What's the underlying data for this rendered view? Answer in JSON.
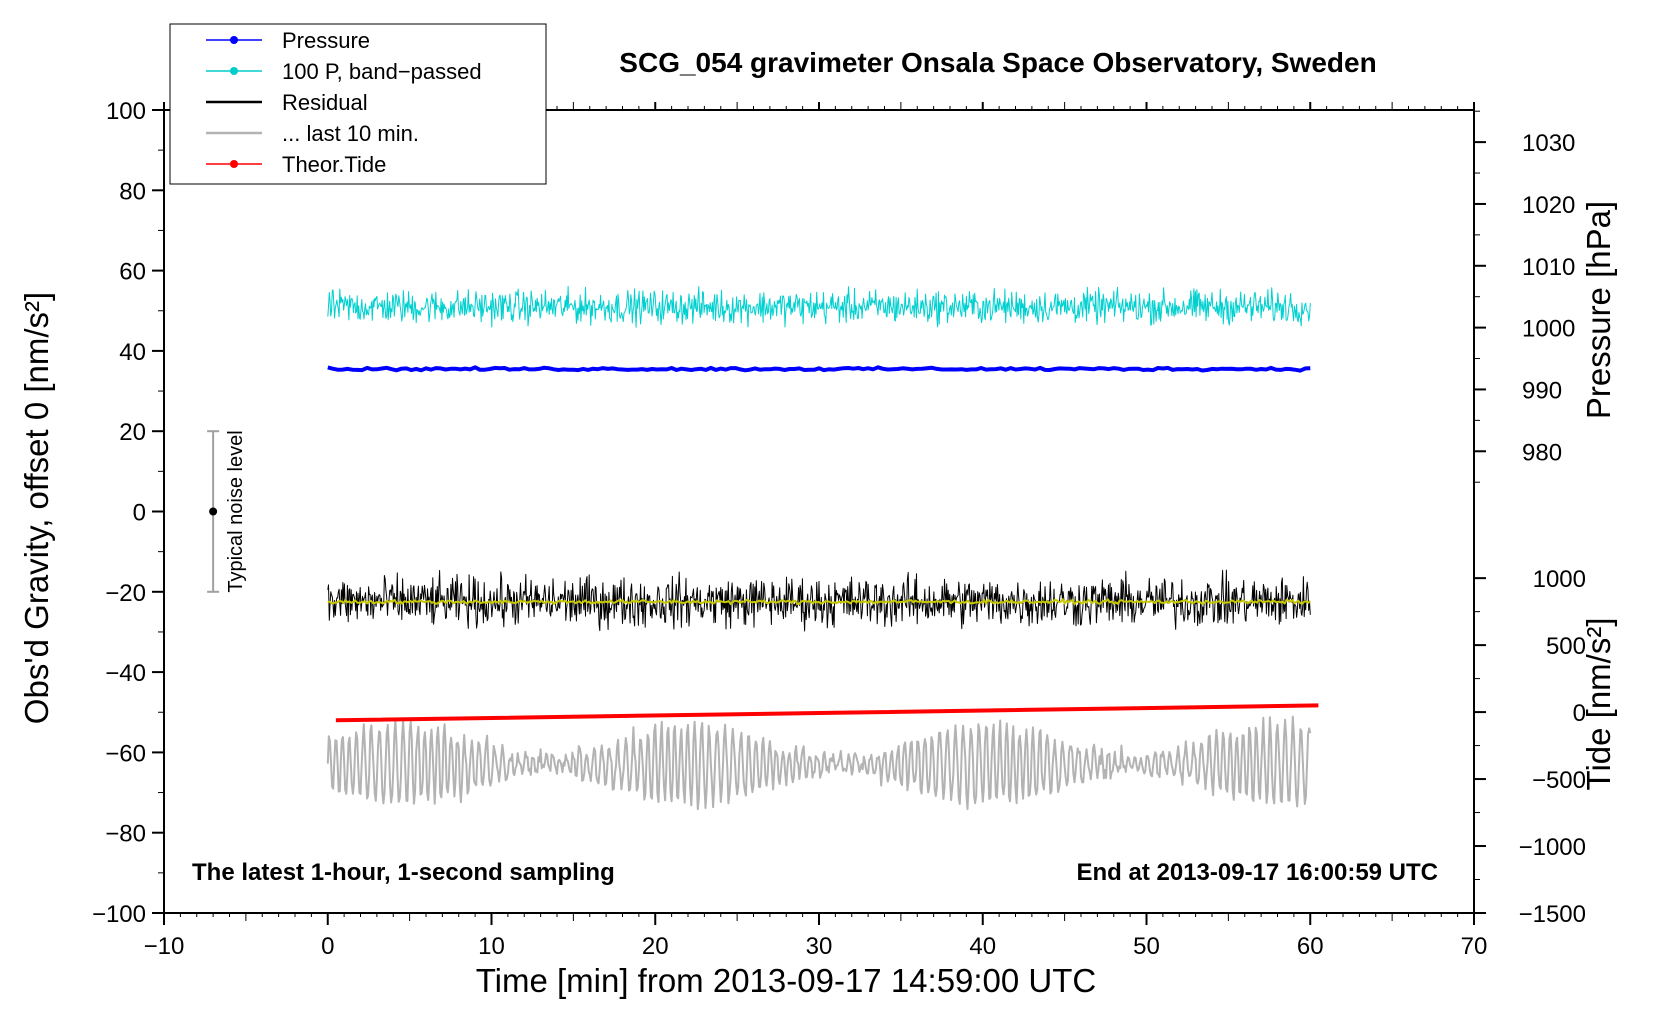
{
  "chart_data": {
    "type": "line",
    "title": "SCG_054 gravimeter Onsala Space Observatory, Sweden",
    "xlabel": "Time [min] from 2013-09-17 14:59:00 UTC",
    "ylabel_left": "Obs'd Gravity, offset 0 [nm/s²]",
    "ylabel_right_top": "Pressure [hPa]",
    "ylabel_right_bottom": "Tide [nm/s²]",
    "xlim": [
      -10,
      70
    ],
    "ylim": [
      -100,
      100
    ],
    "x_ticks": [
      -10,
      0,
      10,
      20,
      30,
      40,
      50,
      60,
      70
    ],
    "x_tick_labels": [
      "−10",
      "0",
      "10",
      "20",
      "30",
      "40",
      "50",
      "60",
      "70"
    ],
    "y_ticks": [
      -100,
      -80,
      -60,
      -40,
      -20,
      0,
      20,
      40,
      60,
      80,
      100
    ],
    "y_tick_labels": [
      "−100",
      "−80",
      "−60",
      "−40",
      "−20",
      "0",
      "20",
      "40",
      "60",
      "80",
      "100"
    ],
    "pressure_axis": {
      "ticks": [
        980,
        990,
        1000,
        1010,
        1020,
        1030
      ],
      "labels": [
        "980",
        "990",
        "1000",
        "1010",
        "1020",
        "1030"
      ],
      "map_to_left": [
        [
          980,
          15
        ],
        [
          1030,
          92
        ]
      ]
    },
    "tide_axis": {
      "ticks": [
        -1500,
        -1000,
        -500,
        0,
        500,
        1000
      ],
      "labels": [
        "−1500",
        "−1000",
        "−500",
        "0",
        "500",
        "1000"
      ],
      "map_to_left": [
        [
          -1500,
          -100
        ],
        [
          1000,
          -16.6
        ]
      ]
    },
    "series": [
      {
        "name": "Pressure",
        "color": "#0000ff",
        "style": "thick",
        "x_range": [
          0,
          60
        ],
        "level": 35.5,
        "amplitude": 0.5,
        "wave_amplitude": 0
      },
      {
        "name": "100 P, band-passed",
        "color": "#00d0d0",
        "style": "thin",
        "x_range": [
          0,
          60
        ],
        "level": 51,
        "amplitude": 6,
        "wave_amplitude": 0
      },
      {
        "name": "Residual",
        "color": "#000000",
        "style": "thin",
        "x_range": [
          0,
          60
        ],
        "level": -22.5,
        "amplitude": 9,
        "wave_amplitude": 0
      },
      {
        "name": "... last 10 min.",
        "color": "#b3b3b3",
        "style": "medium",
        "x_range": [
          0,
          60
        ],
        "level": -63,
        "amplitude": 3,
        "wave_amplitude": 10
      },
      {
        "name": "Theor.Tide",
        "color": "#ff0000",
        "style": "thick",
        "x_range": [
          0.5,
          60.5
        ],
        "start": -52,
        "end": -48.3,
        "amplitude": 0,
        "wave_amplitude": 0
      },
      {
        "name": "",
        "color": "#c8c800",
        "style": "medium",
        "x_range": [
          0,
          60
        ],
        "level": -22.5,
        "amplitude": 0.7,
        "wave_amplitude": 0
      }
    ],
    "legend": {
      "position": "top-left",
      "items": [
        {
          "label": "Pressure",
          "color": "#0000ff",
          "marker": true
        },
        {
          "label": "100 P, band−passed",
          "color": "#00cccc",
          "marker": true
        },
        {
          "label": "Residual",
          "color": "#000000",
          "marker": false
        },
        {
          "label": "... last 10 min.",
          "color": "#b3b3b3",
          "marker": false
        },
        {
          "label": "Theor.Tide",
          "color": "#ff0000",
          "marker": true
        }
      ]
    },
    "noise_bar": {
      "x": -7,
      "center": 0,
      "low": -20,
      "high": 20,
      "label": "Typical noise level"
    },
    "annotations": {
      "bottom_left": "The latest 1-hour, 1-second sampling",
      "bottom_right": "End at 2013-09-17 16:00:59 UTC"
    }
  }
}
